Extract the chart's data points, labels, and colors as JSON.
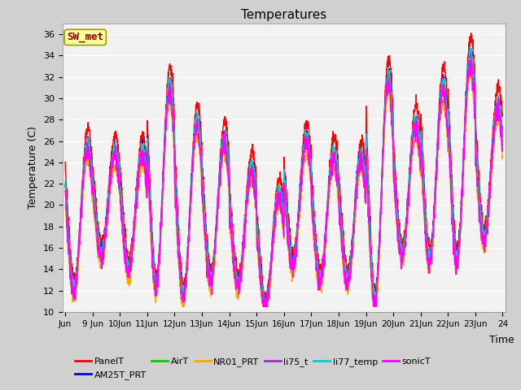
{
  "title": "Temperatures",
  "xlabel": "Time",
  "ylabel": "Temperature (C)",
  "ylim": [
    10,
    37
  ],
  "yticks": [
    10,
    12,
    14,
    16,
    18,
    20,
    22,
    24,
    26,
    28,
    30,
    32,
    34,
    36
  ],
  "annotation_text": "SW_met",
  "annotation_color": "#8B0000",
  "annotation_bg": "#FFFF99",
  "annotation_border": "#9B9B00",
  "series_colors": {
    "PanelT": "#FF0000",
    "AM25T_PRT": "#0000EE",
    "AirT": "#00CC00",
    "NR01_PRT": "#FFA500",
    "li75_t": "#9933CC",
    "li77_temp": "#00CCCC",
    "sonicT": "#FF00FF"
  },
  "legend_order": [
    "PanelT",
    "AM25T_PRT",
    "AirT",
    "NR01_PRT",
    "li75_t",
    "li77_temp",
    "sonicT"
  ],
  "tick_labels": [
    "Jun",
    "9 Jun",
    "10Jun",
    "11Jun",
    "12Jun",
    "13Jun",
    "14Jun",
    "15Jun",
    "16Jun",
    "17Jun",
    "18Jun",
    "19Jun",
    "20Jun",
    "21Jun",
    "22Jun",
    "23Jun",
    "24"
  ],
  "n_days": 16,
  "pts_per_day": 144,
  "day_peaks": [
    27.2,
    26.5,
    26.5,
    33.0,
    29.5,
    27.8,
    25.0,
    22.5,
    27.7,
    26.3,
    26.0,
    33.8,
    29.3,
    33.0,
    35.8,
    31.1
  ],
  "day_troughs": [
    13.0,
    16.5,
    15.0,
    13.5,
    12.5,
    14.0,
    13.5,
    11.5,
    15.5,
    14.0,
    14.0,
    12.0,
    16.5,
    16.0,
    16.0,
    18.0
  ]
}
